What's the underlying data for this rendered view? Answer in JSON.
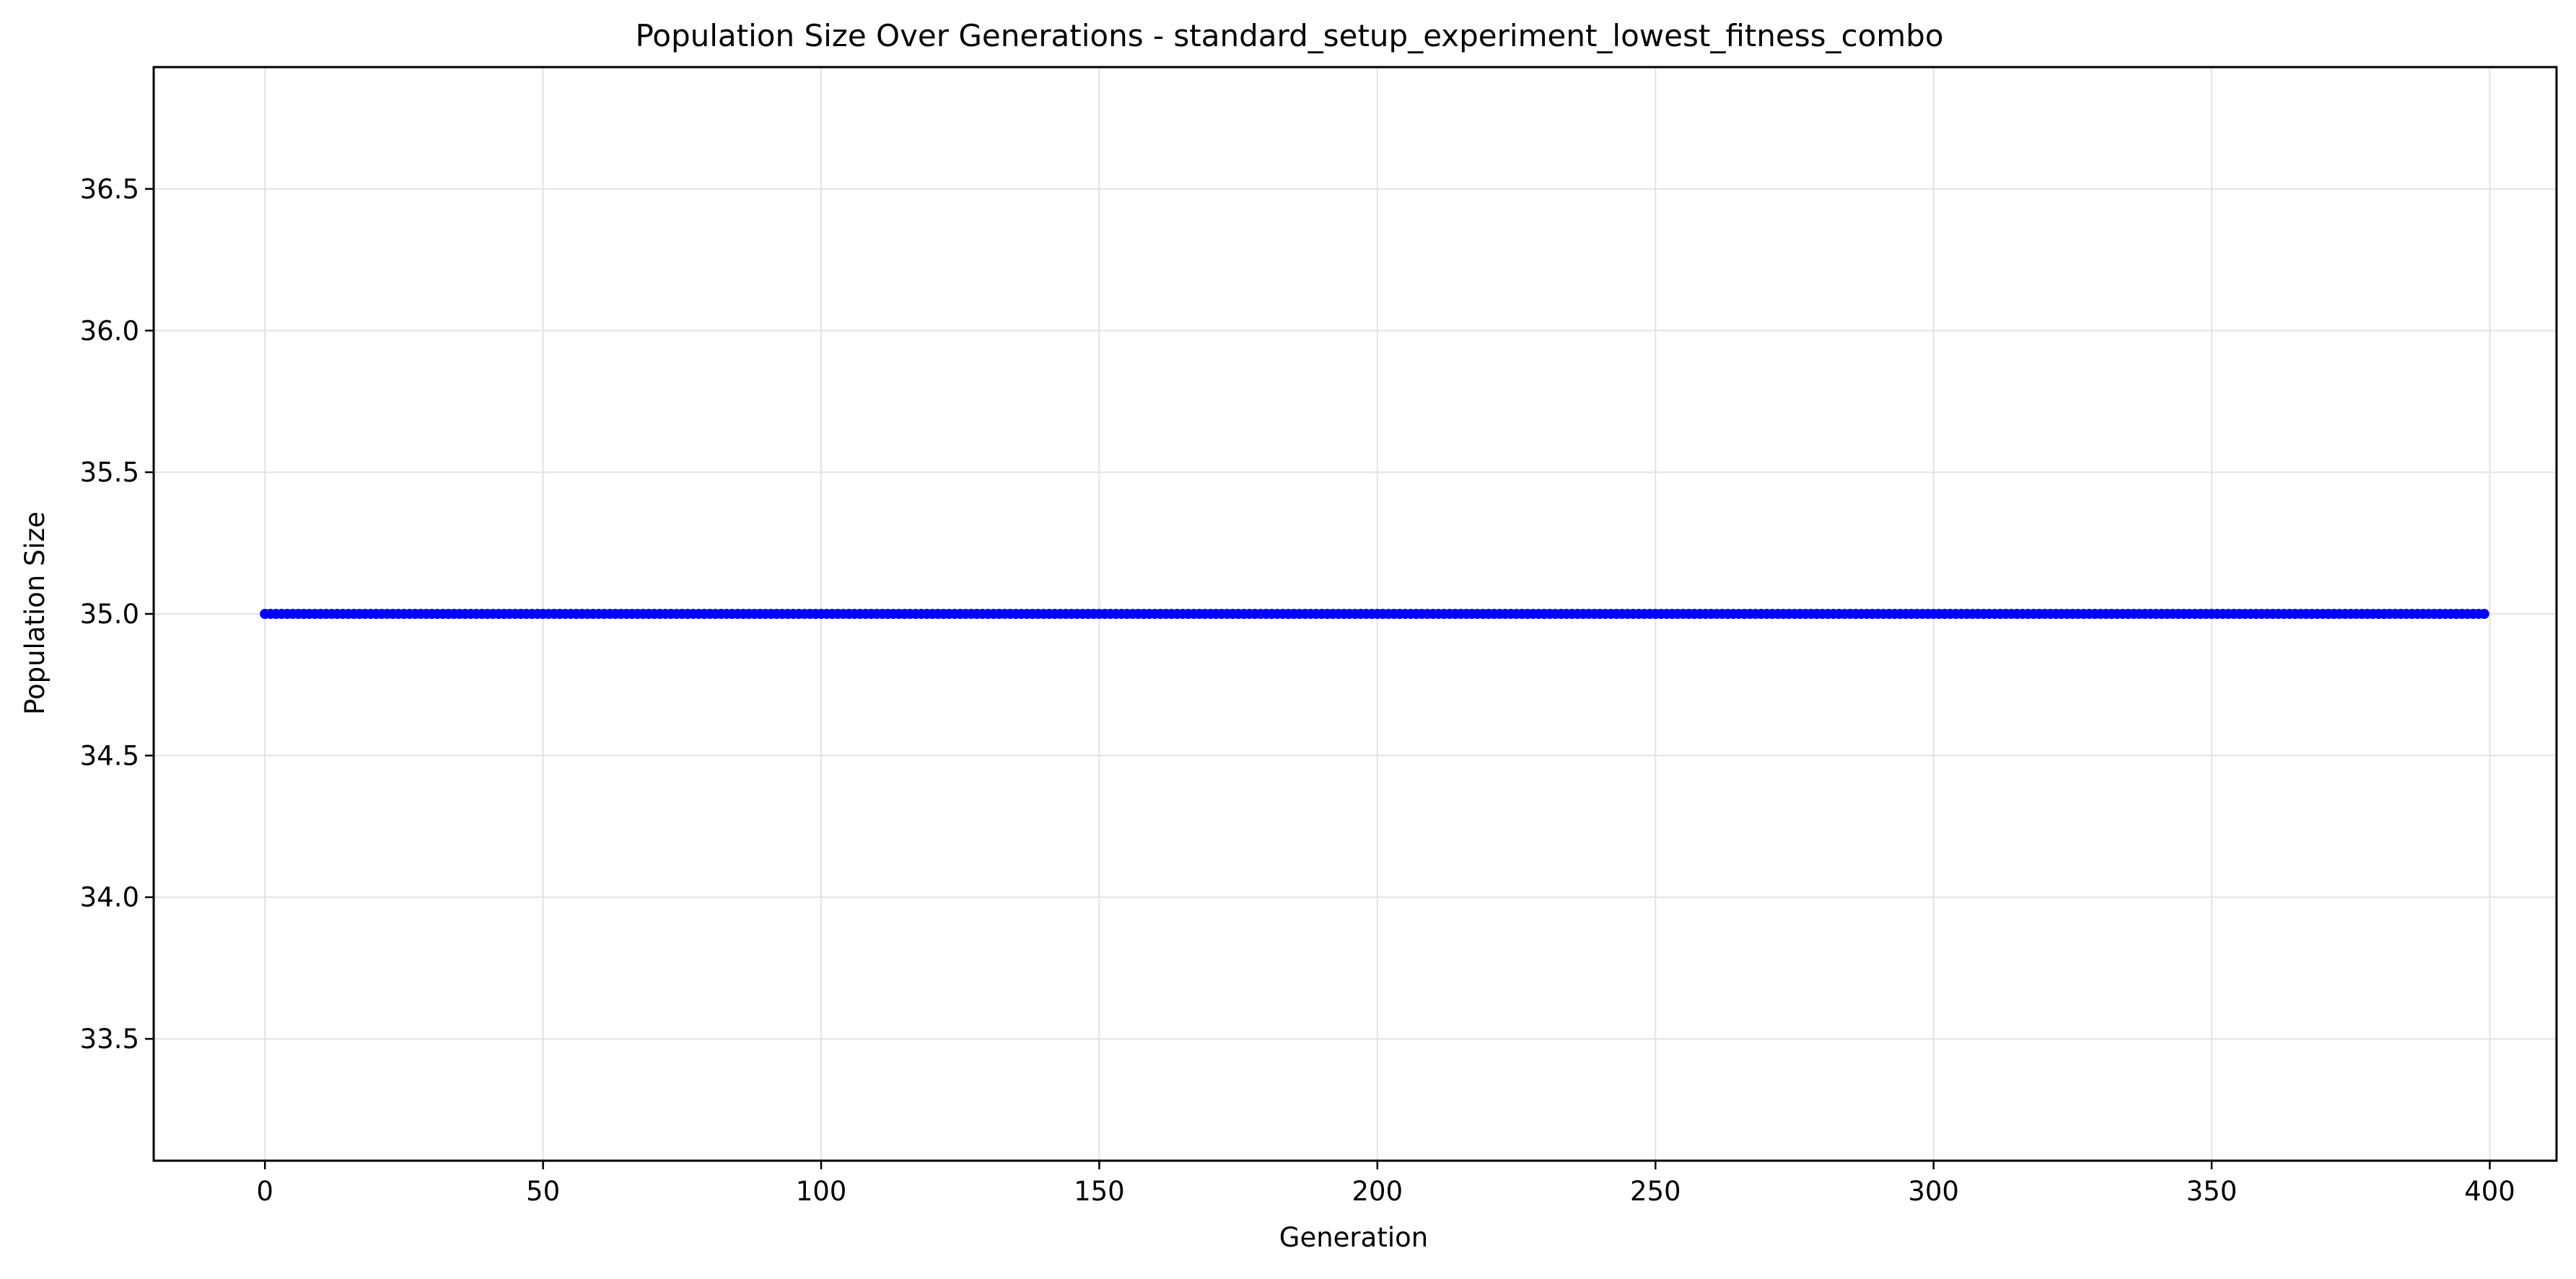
{
  "chart_data": {
    "type": "line",
    "title": "Population Size Over Generations - standard_setup_experiment_lowest_fitness_combo",
    "xlabel": "Generation",
    "ylabel": "Population Size",
    "xlim": [
      -20,
      412
    ],
    "ylim": [
      33.07,
      36.93
    ],
    "x_ticks": [
      0,
      50,
      100,
      150,
      200,
      250,
      300,
      350,
      400
    ],
    "x_tick_labels": [
      "0",
      "50",
      "100",
      "150",
      "200",
      "250",
      "300",
      "350",
      "400"
    ],
    "y_ticks": [
      33.5,
      34.0,
      34.5,
      35.0,
      35.5,
      36.0,
      36.5
    ],
    "y_tick_labels": [
      "33.5",
      "34.0",
      "34.5",
      "35.0",
      "35.5",
      "36.0",
      "36.5"
    ],
    "grid": true,
    "series": [
      {
        "color": "#0000ff",
        "marker": "circle",
        "x_start": 0,
        "x_end": 399,
        "x_step": 1,
        "constant_value": 35.0
      }
    ]
  }
}
